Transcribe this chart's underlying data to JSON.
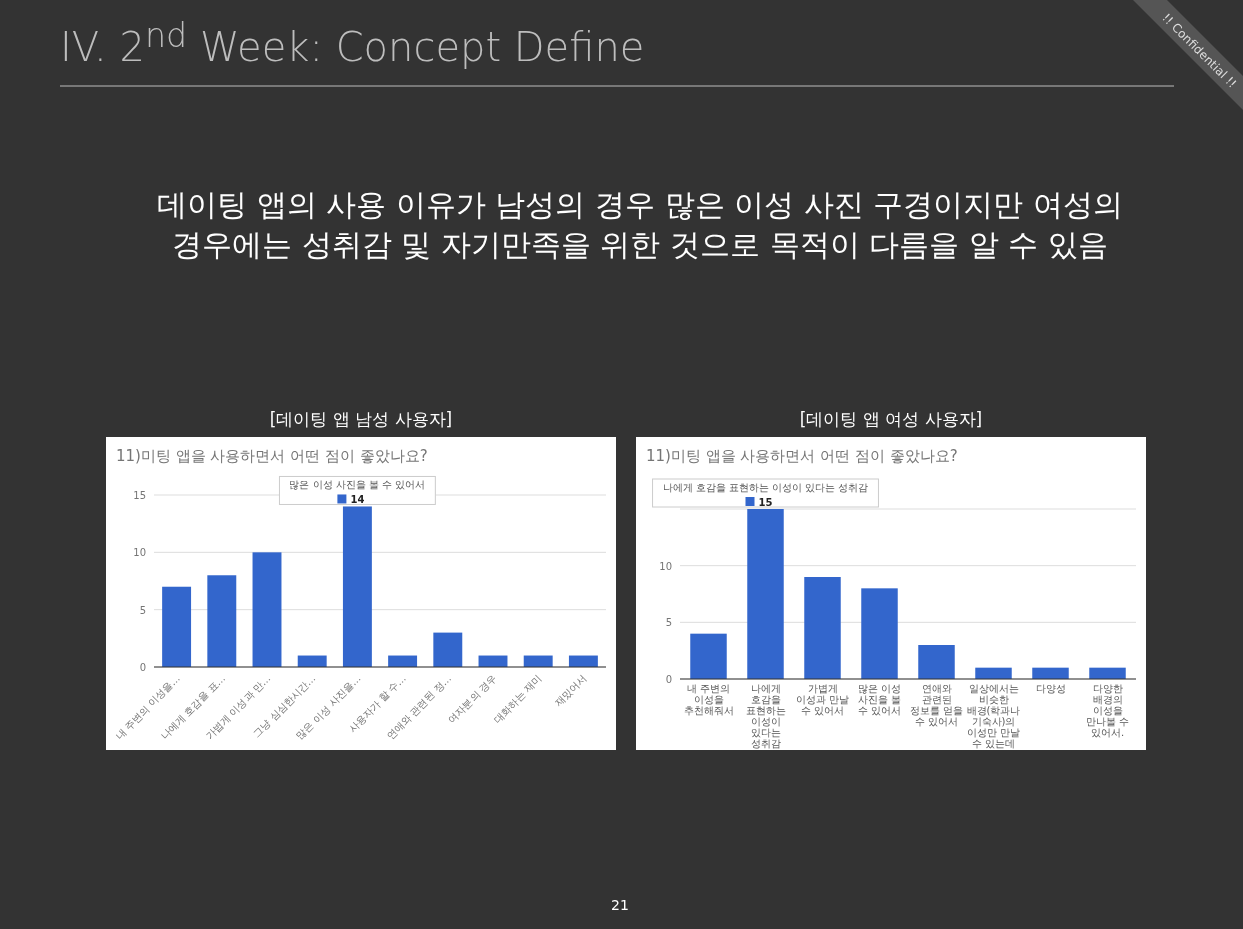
{
  "chart_data": [
    {
      "type": "bar",
      "title": "11)미팅 앱을 사용하면서 어떤 점이 좋았나요?",
      "subtitle": "[데이팅 앱 남성 사용자]",
      "categories": [
        "내 주변의 이성을…",
        "나에게 호감을 표…",
        "가볍게 이성과 만…",
        "그냥 심심한시간…",
        "많은 이성 사진을…",
        "사용자가 할 수…",
        "연애와 관련된 정…",
        "여자분의 경우",
        "대화하는 재미",
        "재밌어서"
      ],
      "values": [
        7,
        8,
        10,
        1,
        14,
        1,
        3,
        1,
        1,
        1
      ],
      "value_labels": [
        null,
        null,
        null,
        null,
        "14",
        null,
        null,
        null,
        null,
        null
      ],
      "color": "#3366cc",
      "ylim": [
        0,
        15
      ],
      "yticks": [
        0,
        5,
        10,
        15
      ],
      "grid": "y",
      "annotations": [
        "IV. 2$^{nd}$ Week: Concept Define",
        "데이팅 앱의 사용 이유가 남성의 경우 많은 이성 사진 구경이지만 여성의 경우에는 성취감 및 자기만족을 위한 것으로 목적이 다름을 알 수 있음",
        "21",
        "!! Confidential !!",
        {
          "text": "많은 이성 사진을 볼 수 있어서",
          "x": "많은 이성 사진을…",
          "y": 14
        }
      ]
    },
    {
      "type": "bar",
      "title": "11)미팅 앱을 사용하면서 어떤 점이 좋았나요?",
      "subtitle": "[데이팅 앱 여성 사용자]",
      "categories": [
        "내 주변의 이성을 추천해줘서",
        "나에게 호감을 표현하는 이성이 있다는 성취감",
        "가볍게 이성과 만날 수 있어서",
        "많은 이성 사진을 볼 수 있어서",
        "연애와 관련된 정보를 얻을 수 있어서",
        "일상에서는 비슷한 배경(학과나 기숙사)의 이성만 만날 수 있는데",
        "다양성",
        "다양한 배경의 이성을 만나볼 수 있어서."
      ],
      "values": [
        4,
        15,
        9,
        8,
        3,
        1,
        1,
        1
      ],
      "value_labels": [
        null,
        "15",
        null,
        null,
        null,
        null,
        null,
        null
      ],
      "color": "#3366cc",
      "ylim": [
        0,
        15
      ],
      "yticks": [
        0,
        5,
        10,
        {
          "value": 15,
          "label": null
        }
      ],
      "grid": "y",
      "annotations": [
        {
          "text": "나에게 호감을 표현하는 이성이 있다는 성취감",
          "x": "나에게 호감을 표현하는 이성이 있다는 성취감",
          "y": 15
        }
      ]
    }
  ]
}
